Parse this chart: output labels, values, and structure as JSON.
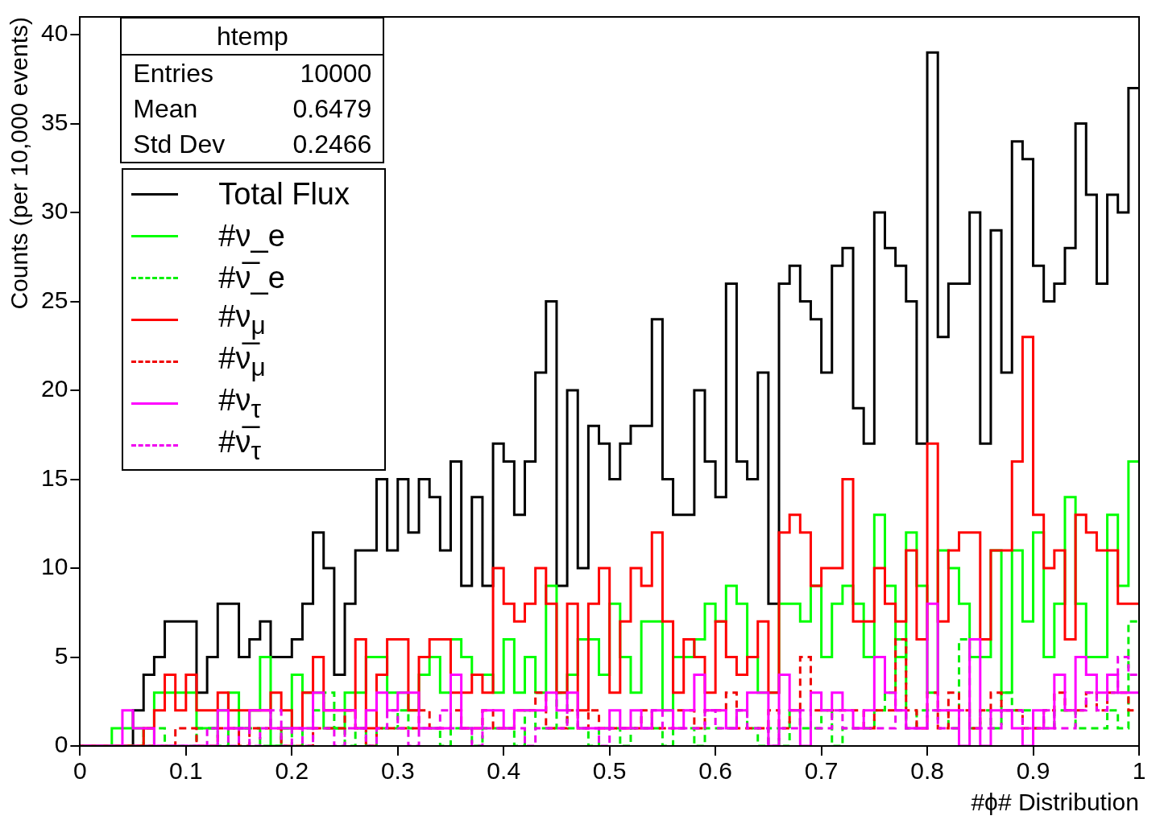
{
  "chart_data": {
    "type": "histogram",
    "xlabel": "#ϕ# Distribution",
    "ylabel": "Counts (per 10,000 events)",
    "annotations": [
      "htemp",
      "Entries",
      "10000",
      "Mean",
      "0.6479",
      "Std Dev",
      "0.2466"
    ],
    "bins": [
      0,
      0.01,
      0.02,
      0.03,
      0.04,
      0.05,
      0.06,
      0.07,
      0.08,
      0.09,
      0.1,
      0.11,
      0.12,
      0.13,
      0.14,
      0.15,
      0.16,
      0.17,
      0.18,
      0.19,
      0.2,
      0.21,
      0.22,
      0.23,
      0.24,
      0.25,
      0.26,
      0.27,
      0.28,
      0.29,
      0.3,
      0.31,
      0.32,
      0.33,
      0.34,
      0.35,
      0.36,
      0.37,
      0.38,
      0.39,
      0.4,
      0.41,
      0.42,
      0.43,
      0.44,
      0.45,
      0.46,
      0.47,
      0.48,
      0.49,
      0.5,
      0.51,
      0.52,
      0.53,
      0.54,
      0.55,
      0.56,
      0.57,
      0.58,
      0.59,
      0.6,
      0.61,
      0.62,
      0.63,
      0.64,
      0.65,
      0.66,
      0.67,
      0.68,
      0.69,
      0.7,
      0.71,
      0.72,
      0.73,
      0.74,
      0.75,
      0.76,
      0.77,
      0.78,
      0.79,
      0.8,
      0.81,
      0.82,
      0.83,
      0.84,
      0.85,
      0.86,
      0.87,
      0.88,
      0.89,
      0.9,
      0.91,
      0.92,
      0.93,
      0.94,
      0.95,
      0.96,
      0.97,
      0.98,
      0.99,
      1
    ],
    "xlim": [
      0,
      1
    ],
    "xticks": [
      0,
      0.1,
      0.2,
      0.3,
      0.4,
      0.5,
      0.6,
      0.7,
      0.8,
      0.9,
      1
    ],
    "ylim": [
      0,
      41
    ],
    "yticks": [
      0,
      5,
      10,
      15,
      20,
      25,
      30,
      35,
      40
    ],
    "grid": false,
    "legend": "top left",
    "series": [
      {
        "name": "Total Flux",
        "color": "#000000",
        "line_style": "solid",
        "values": [
          0,
          0,
          0,
          0,
          0,
          2,
          4,
          5,
          7,
          7,
          7,
          3,
          5,
          8,
          8,
          5,
          6,
          7,
          5,
          5,
          6,
          8,
          12,
          10,
          4,
          8,
          11,
          11,
          15,
          11,
          15,
          12,
          15,
          14,
          11,
          16,
          9,
          14,
          9,
          17,
          16,
          13,
          16,
          21,
          25,
          9,
          20,
          10,
          18,
          17,
          15,
          17,
          18,
          18,
          24,
          15,
          13,
          13,
          20,
          16,
          14,
          26,
          16,
          15,
          21,
          8,
          26,
          27,
          25,
          24,
          21,
          27,
          28,
          19,
          17,
          30,
          28,
          27,
          25,
          17,
          39,
          23,
          26,
          26,
          30,
          17,
          29,
          21,
          34,
          33,
          27,
          25,
          26,
          28,
          35,
          31,
          26,
          31,
          30,
          37
        ]
      },
      {
        "name": "#ν_e",
        "color": "#00ff00",
        "line_style": "solid",
        "values": [
          0,
          0,
          0,
          1,
          1,
          1,
          0,
          3,
          3,
          3,
          3,
          1,
          1,
          2,
          3,
          1,
          2,
          5,
          0,
          1,
          4,
          3,
          3,
          1,
          1,
          3,
          3,
          5,
          5,
          3,
          3,
          2,
          4,
          5,
          3,
          6,
          5,
          4,
          4,
          3,
          6,
          3,
          5,
          3,
          9,
          3,
          4,
          6,
          6,
          4,
          8,
          5,
          3,
          7,
          7,
          2,
          5,
          5,
          6,
          8,
          7,
          9,
          8,
          5,
          3,
          3,
          8,
          8,
          7,
          9,
          5,
          8,
          9,
          8,
          5,
          13,
          9,
          5,
          12,
          9,
          3,
          11,
          10,
          8,
          5,
          5,
          11,
          3,
          11,
          7,
          12,
          5,
          8,
          14,
          8,
          5,
          5,
          13,
          9,
          16
        ]
      },
      {
        "name": "#ν̅_e",
        "color": "#00f000",
        "line_style": "dashed",
        "values": [
          0,
          0,
          0,
          0,
          0,
          0,
          1,
          1,
          0,
          0,
          0,
          1,
          1,
          0,
          1,
          1,
          1,
          0,
          0,
          1,
          0,
          1,
          2,
          3,
          1,
          0,
          1,
          0,
          1,
          1,
          2,
          1,
          1,
          1,
          0,
          1,
          1,
          0,
          1,
          1,
          1,
          0,
          2,
          1,
          1,
          3,
          1,
          1,
          0,
          1,
          1,
          0,
          1,
          1,
          1,
          0,
          1,
          1,
          0,
          1,
          1,
          1,
          2,
          1,
          0,
          1,
          0,
          2,
          1,
          1,
          2,
          0,
          1,
          1,
          1,
          2,
          3,
          6,
          1,
          2,
          2,
          2,
          1,
          6,
          1,
          2,
          1,
          3,
          2,
          2,
          1,
          1,
          2,
          2,
          1,
          1,
          1,
          2,
          1,
          7
        ]
      },
      {
        "name": "#ν$_{μ}$",
        "color": "#ff0000",
        "line_style": "solid",
        "values": [
          0,
          0,
          0,
          0,
          0,
          0,
          1,
          2,
          4,
          2,
          4,
          2,
          2,
          3,
          2,
          2,
          2,
          2,
          3,
          2,
          1,
          3,
          5,
          2,
          2,
          2,
          6,
          1,
          4,
          6,
          6,
          2,
          5,
          6,
          6,
          3,
          3,
          4,
          3,
          10,
          8,
          7,
          8,
          10,
          8,
          3,
          8,
          2,
          8,
          10,
          3,
          7,
          10,
          9,
          12,
          7,
          3,
          6,
          5,
          3,
          7,
          5,
          4,
          5,
          7,
          3,
          12,
          13,
          12,
          9,
          10,
          10,
          15,
          7,
          7,
          10,
          8,
          7,
          11,
          6,
          17,
          7,
          11,
          12,
          12,
          6,
          11,
          11,
          16,
          23,
          13,
          10,
          11,
          6,
          13,
          12,
          11,
          11,
          8,
          8
        ]
      },
      {
        "name": "#ν̅$_{μ}$",
        "color": "#f00000",
        "line_style": "dashed",
        "values": [
          0,
          0,
          0,
          0,
          0,
          0,
          0,
          0,
          0,
          1,
          1,
          0,
          0,
          1,
          1,
          0,
          1,
          1,
          1,
          0,
          0,
          0,
          1,
          1,
          1,
          2,
          1,
          0,
          1,
          1,
          1,
          1,
          2,
          1,
          1,
          2,
          1,
          1,
          2,
          1,
          1,
          2,
          2,
          3,
          1,
          1,
          2,
          1,
          2,
          1,
          1,
          1,
          1,
          2,
          1,
          1,
          2,
          2,
          1,
          2,
          2,
          3,
          1,
          1,
          1,
          2,
          1,
          2,
          5,
          2,
          2,
          2,
          2,
          2,
          1,
          2,
          2,
          6,
          2,
          1,
          3,
          1,
          3,
          2,
          1,
          2,
          3,
          2,
          2,
          1,
          1,
          2,
          3,
          2,
          2,
          3,
          2,
          3,
          3,
          2
        ]
      },
      {
        "name": "#ν$_{τ}$",
        "color": "#ff00ff",
        "line_style": "solid",
        "values": [
          0,
          0,
          0,
          0,
          2,
          1,
          1,
          0,
          0,
          0,
          0,
          0,
          0,
          2,
          1,
          1,
          2,
          2,
          1,
          1,
          1,
          1,
          3,
          2,
          2,
          2,
          1,
          2,
          3,
          2,
          3,
          3,
          1,
          1,
          1,
          4,
          1,
          1,
          2,
          2,
          1,
          2,
          2,
          2,
          3,
          2,
          3,
          1,
          1,
          1,
          2,
          1,
          2,
          1,
          2,
          2,
          1,
          2,
          4,
          2,
          2,
          1,
          2,
          3,
          3,
          0,
          4,
          2,
          0,
          3,
          2,
          3,
          2,
          1,
          2,
          5,
          3,
          2,
          1,
          1,
          8,
          2,
          2,
          0,
          6,
          0,
          2,
          2,
          1,
          0,
          2,
          1,
          4,
          2,
          5,
          4,
          3,
          4,
          3,
          3
        ]
      },
      {
        "name": "#ν̅$_{τ}$",
        "color": "#f000f0",
        "line_style": "dashed",
        "values": [
          0,
          0,
          0,
          0,
          0,
          0,
          0,
          0,
          0,
          0,
          0,
          0,
          1,
          1,
          0,
          1,
          0,
          1,
          2,
          0,
          1,
          0,
          1,
          1,
          0,
          1,
          1,
          0,
          1,
          2,
          1,
          0,
          1,
          1,
          2,
          1,
          1,
          0,
          1,
          1,
          1,
          1,
          0,
          1,
          1,
          1,
          2,
          1,
          1,
          0,
          1,
          1,
          1,
          1,
          2,
          1,
          1,
          1,
          1,
          2,
          1,
          1,
          2,
          1,
          1,
          0,
          1,
          1,
          2,
          1,
          1,
          2,
          1,
          1,
          1,
          1,
          1,
          2,
          1,
          1,
          2,
          1,
          1,
          2,
          1,
          1,
          1,
          2,
          2,
          1,
          1,
          2,
          1,
          1,
          2,
          3,
          2,
          3,
          5,
          4
        ]
      }
    ]
  }
}
